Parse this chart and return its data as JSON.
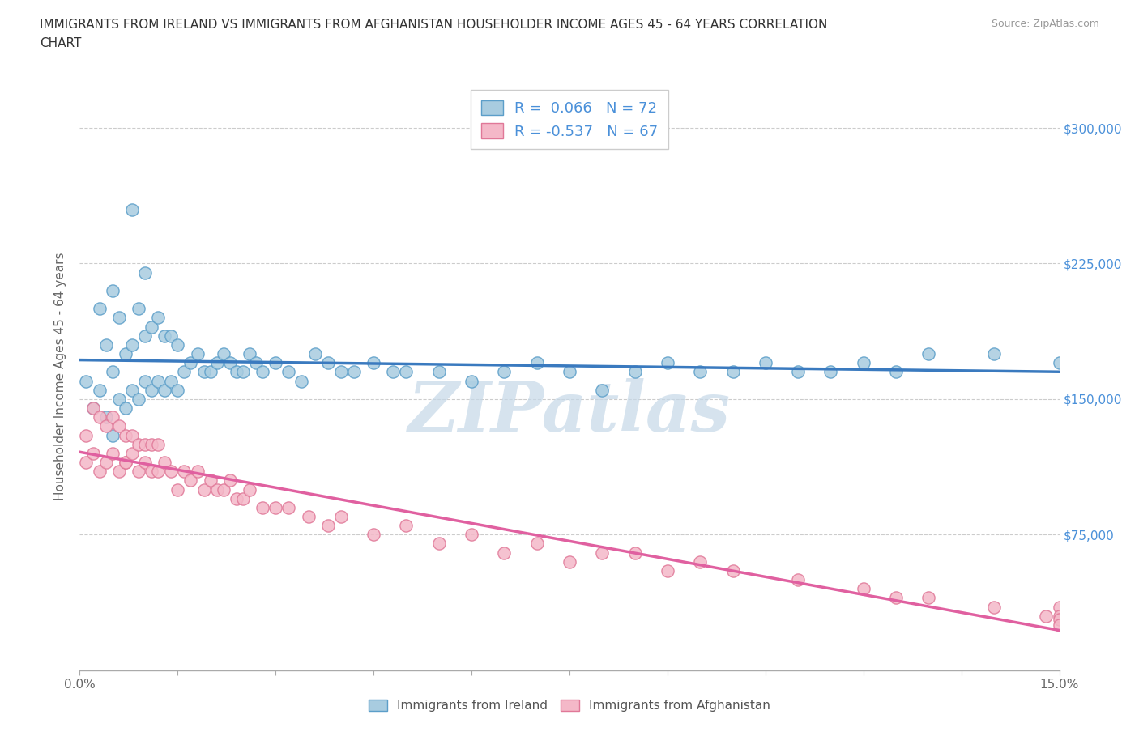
{
  "title_line1": "IMMIGRANTS FROM IRELAND VS IMMIGRANTS FROM AFGHANISTAN HOUSEHOLDER INCOME AGES 45 - 64 YEARS CORRELATION",
  "title_line2": "CHART",
  "source": "Source: ZipAtlas.com",
  "ylabel": "Householder Income Ages 45 - 64 years",
  "xlim": [
    0.0,
    0.15
  ],
  "ylim": [
    0,
    325000
  ],
  "yticks": [
    0,
    75000,
    150000,
    225000,
    300000
  ],
  "xticks": [
    0.0,
    0.015,
    0.03,
    0.045,
    0.06,
    0.075,
    0.09,
    0.105,
    0.12,
    0.135,
    0.15
  ],
  "ireland_color": "#a8cce0",
  "ireland_edge": "#5b9ec9",
  "afghanistan_color": "#f4b8c8",
  "afghanistan_edge": "#e07898",
  "ireland_R": 0.066,
  "ireland_N": 72,
  "afghanistan_R": -0.537,
  "afghanistan_N": 67,
  "ireland_line_color": "#3a7abf",
  "afghanistan_line_color": "#e060a0",
  "watermark_color": "#c5d8e8",
  "background_color": "#ffffff",
  "grid_color": "#cccccc",
  "legend_text_color": "#4a90d9",
  "legend_label_ireland": "Immigrants from Ireland",
  "legend_label_afghanistan": "Immigrants from Afghanistan",
  "right_tick_color": "#4a90d9",
  "ireland_scatter_x": [
    0.001,
    0.002,
    0.003,
    0.003,
    0.004,
    0.004,
    0.005,
    0.005,
    0.005,
    0.006,
    0.006,
    0.007,
    0.007,
    0.008,
    0.008,
    0.008,
    0.009,
    0.009,
    0.01,
    0.01,
    0.01,
    0.011,
    0.011,
    0.012,
    0.012,
    0.013,
    0.013,
    0.014,
    0.014,
    0.015,
    0.015,
    0.016,
    0.017,
    0.018,
    0.019,
    0.02,
    0.021,
    0.022,
    0.023,
    0.024,
    0.025,
    0.026,
    0.027,
    0.028,
    0.03,
    0.032,
    0.034,
    0.036,
    0.038,
    0.04,
    0.042,
    0.045,
    0.048,
    0.05,
    0.055,
    0.06,
    0.065,
    0.07,
    0.075,
    0.08,
    0.085,
    0.09,
    0.095,
    0.1,
    0.105,
    0.11,
    0.115,
    0.12,
    0.125,
    0.13,
    0.14,
    0.15
  ],
  "ireland_scatter_y": [
    160000,
    145000,
    155000,
    200000,
    140000,
    180000,
    130000,
    165000,
    210000,
    150000,
    195000,
    145000,
    175000,
    155000,
    180000,
    255000,
    150000,
    200000,
    160000,
    185000,
    220000,
    155000,
    190000,
    160000,
    195000,
    155000,
    185000,
    160000,
    185000,
    155000,
    180000,
    165000,
    170000,
    175000,
    165000,
    165000,
    170000,
    175000,
    170000,
    165000,
    165000,
    175000,
    170000,
    165000,
    170000,
    165000,
    160000,
    175000,
    170000,
    165000,
    165000,
    170000,
    165000,
    165000,
    165000,
    160000,
    165000,
    170000,
    165000,
    155000,
    165000,
    170000,
    165000,
    165000,
    170000,
    165000,
    165000,
    170000,
    165000,
    175000,
    175000,
    170000
  ],
  "afghanistan_scatter_x": [
    0.001,
    0.001,
    0.002,
    0.002,
    0.003,
    0.003,
    0.004,
    0.004,
    0.005,
    0.005,
    0.006,
    0.006,
    0.007,
    0.007,
    0.007,
    0.008,
    0.008,
    0.009,
    0.009,
    0.01,
    0.01,
    0.011,
    0.011,
    0.012,
    0.012,
    0.013,
    0.014,
    0.015,
    0.016,
    0.017,
    0.018,
    0.019,
    0.02,
    0.021,
    0.022,
    0.023,
    0.024,
    0.025,
    0.026,
    0.028,
    0.03,
    0.032,
    0.035,
    0.038,
    0.04,
    0.045,
    0.05,
    0.055,
    0.06,
    0.065,
    0.07,
    0.075,
    0.08,
    0.085,
    0.09,
    0.095,
    0.1,
    0.11,
    0.12,
    0.125,
    0.13,
    0.14,
    0.148,
    0.15,
    0.15,
    0.15,
    0.15
  ],
  "afghanistan_scatter_y": [
    130000,
    115000,
    120000,
    145000,
    110000,
    140000,
    115000,
    135000,
    120000,
    140000,
    110000,
    135000,
    115000,
    130000,
    115000,
    120000,
    130000,
    110000,
    125000,
    115000,
    125000,
    110000,
    125000,
    110000,
    125000,
    115000,
    110000,
    100000,
    110000,
    105000,
    110000,
    100000,
    105000,
    100000,
    100000,
    105000,
    95000,
    95000,
    100000,
    90000,
    90000,
    90000,
    85000,
    80000,
    85000,
    75000,
    80000,
    70000,
    75000,
    65000,
    70000,
    60000,
    65000,
    65000,
    55000,
    60000,
    55000,
    50000,
    45000,
    40000,
    40000,
    35000,
    30000,
    35000,
    30000,
    28000,
    25000
  ]
}
